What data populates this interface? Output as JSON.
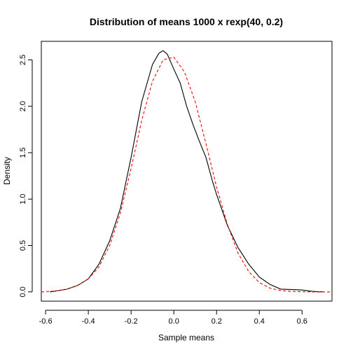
{
  "chart_data": {
    "type": "line",
    "title": "Distribution of means 1000 x rexp(40, 0.2)",
    "xlabel": "Sample means",
    "ylabel": "Density",
    "xlim": [
      -0.62,
      0.74
    ],
    "ylim": [
      -0.1,
      2.7
    ],
    "x_ticks": [
      -0.6,
      -0.4,
      -0.2,
      0.0,
      0.2,
      0.4,
      0.6
    ],
    "x_tick_labels": [
      "-0.6",
      "-0.4",
      "-0.2",
      "0.0",
      "0.2",
      "0.4",
      "0.6"
    ],
    "y_ticks": [
      0.0,
      0.5,
      1.0,
      1.5,
      2.0,
      2.5
    ],
    "y_tick_labels": [
      "0.0",
      "0.5",
      "1.0",
      "1.5",
      "2.0",
      "2.5"
    ],
    "grid": false,
    "legend": "none",
    "series": [
      {
        "style": "solid",
        "color": "#000000",
        "points": [
          [
            -0.58,
            0.0
          ],
          [
            -0.55,
            0.01
          ],
          [
            -0.5,
            0.03
          ],
          [
            -0.45,
            0.07
          ],
          [
            -0.4,
            0.14
          ],
          [
            -0.35,
            0.3
          ],
          [
            -0.3,
            0.55
          ],
          [
            -0.25,
            0.9
          ],
          [
            -0.2,
            1.45
          ],
          [
            -0.15,
            2.05
          ],
          [
            -0.1,
            2.45
          ],
          [
            -0.07,
            2.57
          ],
          [
            -0.05,
            2.6
          ],
          [
            -0.03,
            2.56
          ],
          [
            0.0,
            2.4
          ],
          [
            0.03,
            2.25
          ],
          [
            0.06,
            2.0
          ],
          [
            0.09,
            1.8
          ],
          [
            0.12,
            1.62
          ],
          [
            0.15,
            1.45
          ],
          [
            0.18,
            1.2
          ],
          [
            0.2,
            1.05
          ],
          [
            0.25,
            0.72
          ],
          [
            0.3,
            0.48
          ],
          [
            0.35,
            0.3
          ],
          [
            0.4,
            0.16
          ],
          [
            0.45,
            0.08
          ],
          [
            0.5,
            0.03
          ],
          [
            0.55,
            0.025
          ],
          [
            0.6,
            0.02
          ],
          [
            0.65,
            0.005
          ],
          [
            0.7,
            0.0
          ]
        ]
      },
      {
        "style": "dashed",
        "color": "#ff0000",
        "points": [
          [
            -0.62,
            0.0
          ],
          [
            -0.55,
            0.01
          ],
          [
            -0.5,
            0.03
          ],
          [
            -0.45,
            0.07
          ],
          [
            -0.4,
            0.14
          ],
          [
            -0.35,
            0.27
          ],
          [
            -0.3,
            0.5
          ],
          [
            -0.25,
            0.85
          ],
          [
            -0.2,
            1.33
          ],
          [
            -0.15,
            1.85
          ],
          [
            -0.1,
            2.27
          ],
          [
            -0.05,
            2.5
          ],
          [
            0.0,
            2.53
          ],
          [
            0.05,
            2.37
          ],
          [
            0.1,
            2.05
          ],
          [
            0.15,
            1.6
          ],
          [
            0.2,
            1.13
          ],
          [
            0.25,
            0.73
          ],
          [
            0.3,
            0.42
          ],
          [
            0.35,
            0.22
          ],
          [
            0.4,
            0.1
          ],
          [
            0.45,
            0.04
          ],
          [
            0.5,
            0.015
          ],
          [
            0.55,
            0.005
          ],
          [
            0.6,
            0.002
          ],
          [
            0.65,
            0.0
          ],
          [
            0.74,
            0.0
          ]
        ]
      }
    ]
  }
}
